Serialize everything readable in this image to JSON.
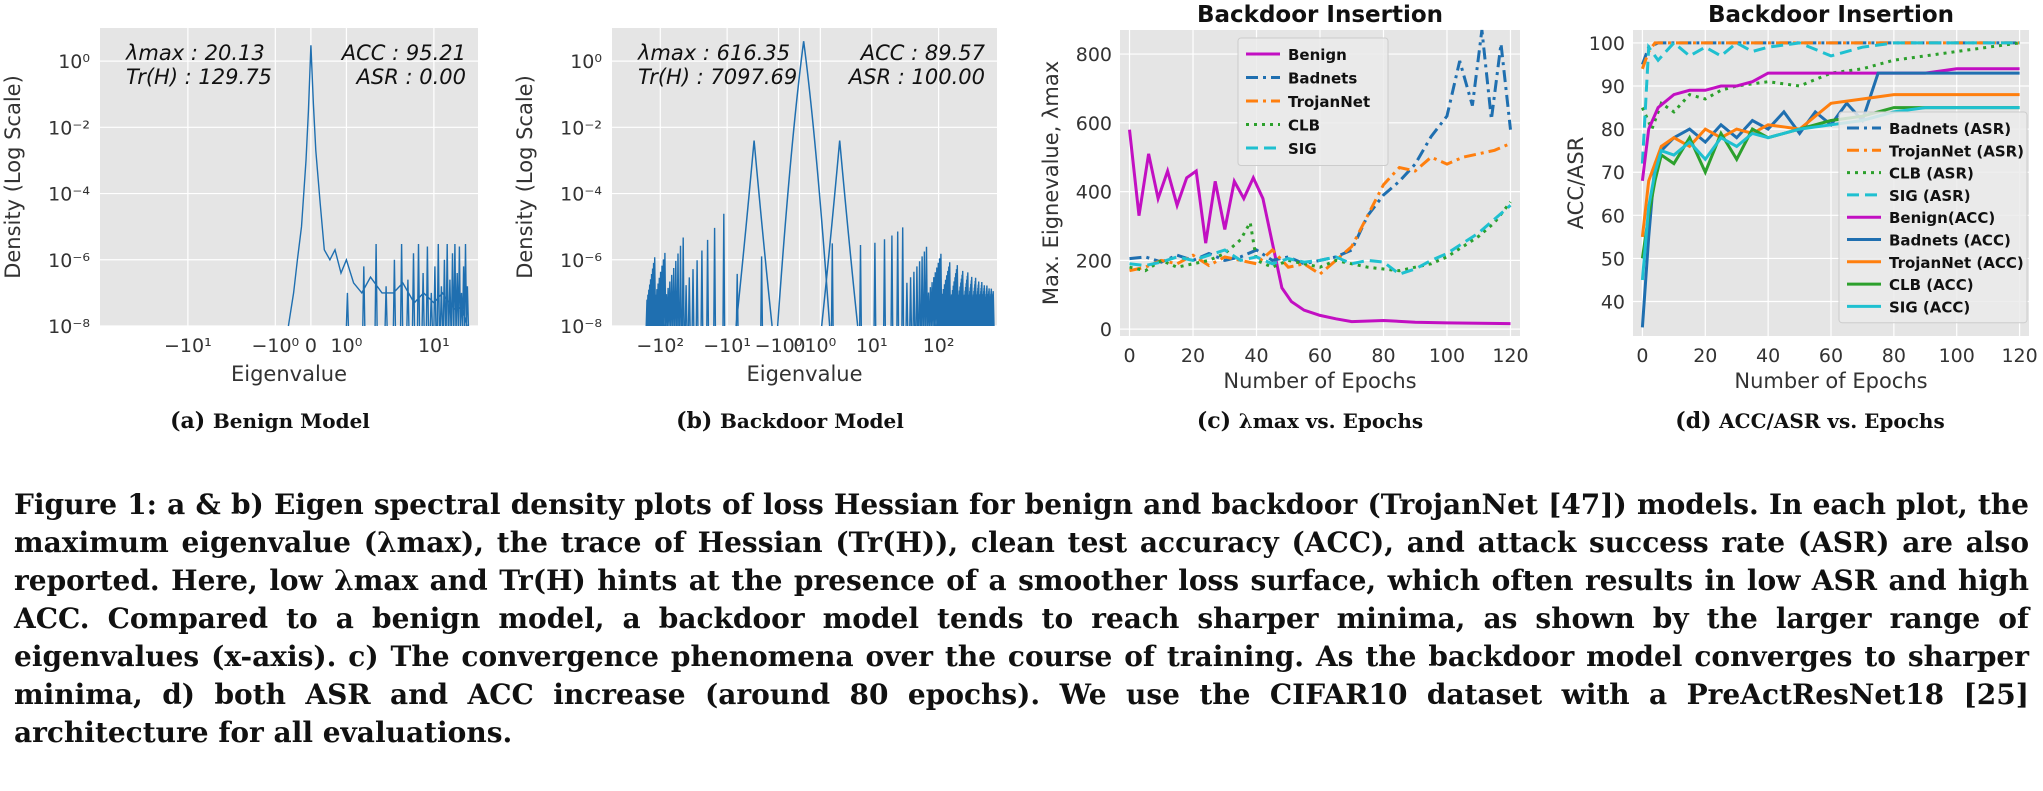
{
  "subcaptions": [
    {
      "label": "(a)",
      "text": "Benign Model"
    },
    {
      "label": "(b)",
      "text": "Backdoor Model"
    },
    {
      "label": "(c)",
      "text": "λmax vs. Epochs"
    },
    {
      "label": "(d)",
      "text": "ACC/ASR vs. Epochs"
    }
  ],
  "caption": "Figure 1: a & b) Eigen spectral density plots of loss Hessian for benign and backdoor (TrojanNet [47]) models. In each plot, the maximum eigenvalue (λmax), the trace of Hessian (Tr(H)), clean test accuracy (ACC), and attack success rate (ASR) are also reported. Here, low λmax and Tr(H) hints at the presence of a smoother loss surface, which often results in low ASR and high ACC. Compared to a benign model, a backdoor model tends to reach sharper minima, as shown by the larger range of eigenvalues (x-axis). c) The convergence phenomena over the course of training. As the backdoor model converges to sharper minima, d) both ASR and ACC increase (around 80 epochs). We use the CIFAR10 dataset with a PreActResNet18 [25] architecture for all evaluations.",
  "colors": {
    "benign": "#c20fc2",
    "badnets": "#1f6fb0",
    "trojannet": "#ff7f0e",
    "clb": "#2ca02c",
    "sig": "#1fc0d0",
    "esd": "#1f6fb0",
    "panel_bg": "#e5e5e5"
  },
  "chart_data": [
    {
      "type": "line",
      "xlabel": "Eigenvalue",
      "ylabel": "Density (Log Scale)",
      "xscale": "symlog",
      "yscale": "log",
      "xticks": [
        "−10¹",
        "−10⁰",
        "0",
        "10⁰",
        "10¹"
      ],
      "yticks": [
        "10⁰",
        "10⁻²",
        "10⁻⁴",
        "10⁻⁶",
        "10⁻⁸"
      ],
      "ylim": [
        1e-08,
        10
      ],
      "annotations": [
        {
          "name": "λmax",
          "value": "20.13"
        },
        {
          "name": "Tr(H)",
          "value": "129.75"
        },
        {
          "name": "ACC",
          "value": "95.21"
        },
        {
          "name": "ASR",
          "value": "0.00"
        }
      ],
      "x": [
        -0.55,
        -0.4,
        -0.3,
        -0.2,
        -0.1,
        -0.05,
        0,
        0.05,
        0.1,
        0.2,
        0.3,
        0.45,
        0.6,
        0.8,
        1.0,
        1.3,
        1.7,
        2.2,
        3,
        4,
        5,
        6.5,
        8,
        10,
        12,
        14,
        16,
        18,
        20
      ],
      "y": [
        1e-08,
        1e-07,
        1e-06,
        1e-05,
        0.001,
        0.03,
        3,
        0.05,
        0.002,
        5e-05,
        2e-06,
        1e-06,
        2e-06,
        4e-07,
        1e-06,
        2e-07,
        1e-07,
        3e-07,
        1e-07,
        1e-07,
        2e-07,
        5e-08,
        1e-07,
        5e-08,
        1e-07,
        5e-08,
        3e-08,
        4e-08,
        1e-08
      ]
    },
    {
      "type": "line",
      "xlabel": "Eigenvalue",
      "ylabel": "Density (Log Scale)",
      "xscale": "symlog",
      "yscale": "log",
      "xticks": [
        "−10²",
        "−10¹",
        "−10⁰",
        "0",
        "10⁰",
        "10¹",
        "10²"
      ],
      "yticks": [
        "10⁰",
        "10⁻²",
        "10⁻⁴",
        "10⁻⁶",
        "10⁻⁸"
      ],
      "ylim": [
        1e-08,
        10
      ],
      "annotations": [
        {
          "name": "λmax",
          "value": "616.35"
        },
        {
          "name": "Tr(H)",
          "value": "7097.69"
        },
        {
          "name": "ACC",
          "value": "89.57"
        },
        {
          "name": "ASR",
          "value": "100.00"
        }
      ],
      "peaks": [
        {
          "x": -3.5,
          "y": 0.004
        },
        {
          "x": 0.15,
          "y": 4
        },
        {
          "x": 2.8,
          "y": 0.004
        }
      ],
      "spikes_range": [
        -160,
        600
      ]
    },
    {
      "type": "line",
      "title": "Backdoor Insertion",
      "xlabel": "Number of Epochs",
      "ylabel": "Max. Eignevalue, λmax",
      "xlim": [
        -3,
        123
      ],
      "ylim": [
        -20,
        870
      ],
      "xticks": [
        0,
        20,
        40,
        60,
        80,
        100,
        120
      ],
      "yticks": [
        0,
        200,
        400,
        600,
        800
      ],
      "legend": "top-center",
      "series": [
        {
          "name": "Benign",
          "color": "#c20fc2",
          "dash": "solid",
          "x": [
            0,
            3,
            6,
            9,
            12,
            15,
            18,
            21,
            24,
            27,
            30,
            33,
            36,
            39,
            42,
            45,
            48,
            51,
            55,
            60,
            65,
            70,
            80,
            90,
            100,
            110,
            120
          ],
          "y": [
            580,
            330,
            510,
            380,
            460,
            360,
            440,
            460,
            250,
            430,
            290,
            430,
            380,
            440,
            380,
            250,
            120,
            80,
            55,
            40,
            30,
            22,
            25,
            20,
            18,
            17,
            16
          ]
        },
        {
          "name": "Badnets",
          "color": "#1f6fb0",
          "dash": "dashdot",
          "x": [
            0,
            5,
            10,
            15,
            20,
            25,
            30,
            35,
            40,
            45,
            50,
            55,
            60,
            65,
            70,
            75,
            80,
            85,
            90,
            95,
            100,
            104,
            108,
            111,
            114,
            117,
            120
          ],
          "y": [
            205,
            210,
            195,
            215,
            200,
            220,
            200,
            210,
            230,
            200,
            210,
            190,
            200,
            210,
            230,
            330,
            390,
            430,
            480,
            560,
            620,
            780,
            650,
            870,
            610,
            830,
            580
          ]
        },
        {
          "name": "TrojanNet",
          "color": "#ff7f0e",
          "dash": "dashdot",
          "x": [
            0,
            5,
            10,
            15,
            20,
            25,
            30,
            35,
            40,
            45,
            50,
            55,
            60,
            65,
            70,
            75,
            80,
            85,
            90,
            95,
            100,
            105,
            110,
            115,
            120
          ],
          "y": [
            170,
            180,
            200,
            190,
            215,
            185,
            210,
            200,
            190,
            230,
            180,
            190,
            160,
            200,
            240,
            330,
            420,
            470,
            460,
            500,
            480,
            500,
            510,
            520,
            540
          ]
        },
        {
          "name": "CLB",
          "color": "#2ca02c",
          "dash": "dotted",
          "x": [
            0,
            5,
            10,
            15,
            20,
            25,
            30,
            35,
            38,
            40,
            45,
            50,
            55,
            60,
            65,
            70,
            75,
            80,
            85,
            90,
            95,
            100,
            105,
            110,
            115,
            120
          ],
          "y": [
            180,
            170,
            200,
            180,
            190,
            200,
            220,
            260,
            310,
            200,
            180,
            200,
            190,
            180,
            200,
            190,
            180,
            175,
            170,
            180,
            190,
            210,
            240,
            270,
            310,
            370
          ]
        },
        {
          "name": "SIG",
          "color": "#1fc0d0",
          "dash": "dashed",
          "x": [
            0,
            5,
            10,
            15,
            20,
            25,
            30,
            35,
            40,
            45,
            50,
            55,
            60,
            65,
            70,
            75,
            80,
            85,
            90,
            95,
            100,
            105,
            110,
            115,
            120
          ],
          "y": [
            190,
            185,
            195,
            210,
            200,
            215,
            230,
            200,
            210,
            190,
            205,
            195,
            200,
            210,
            190,
            200,
            195,
            160,
            175,
            200,
            220,
            250,
            280,
            320,
            360
          ]
        }
      ]
    },
    {
      "type": "line",
      "title": "Backdoor Insertion",
      "xlabel": "Number of Epochs",
      "ylabel": "ACC/ASR",
      "xlim": [
        -3,
        123
      ],
      "ylim": [
        32,
        103
      ],
      "xticks": [
        0,
        20,
        40,
        60,
        80,
        100,
        120
      ],
      "yticks": [
        40,
        50,
        60,
        70,
        80,
        90,
        100
      ],
      "legend": "right",
      "series": [
        {
          "name": "Badnets (ASR)",
          "color": "#1f6fb0",
          "dash": "dashdot",
          "x": [
            0,
            2,
            5,
            10,
            20,
            40,
            60,
            80,
            100,
            120
          ],
          "y": [
            95,
            99,
            100,
            100,
            100,
            100,
            100,
            100,
            100,
            100
          ]
        },
        {
          "name": "TrojanNet (ASR)",
          "color": "#ff7f0e",
          "dash": "dashdot",
          "x": [
            0,
            2,
            4,
            10,
            20,
            40,
            60,
            80,
            100,
            120
          ],
          "y": [
            94,
            98,
            100,
            100,
            100,
            100,
            100,
            100,
            100,
            100
          ]
        },
        {
          "name": "CLB (ASR)",
          "color": "#2ca02c",
          "dash": "dotted",
          "x": [
            0,
            3,
            6,
            10,
            15,
            20,
            25,
            30,
            40,
            50,
            60,
            70,
            80,
            90,
            100,
            110,
            120
          ],
          "y": [
            85,
            80,
            86,
            84,
            88,
            87,
            89,
            90,
            91,
            90,
            93,
            94,
            96,
            97,
            98,
            99,
            100
          ]
        },
        {
          "name": "SIG (ASR)",
          "color": "#1fc0d0",
          "dash": "dashed",
          "x": [
            0,
            2,
            5,
            10,
            15,
            20,
            25,
            30,
            35,
            40,
            50,
            60,
            70,
            80,
            90,
            100,
            110,
            120
          ],
          "y": [
            72,
            99,
            96,
            100,
            97,
            99,
            97,
            100,
            98,
            99,
            100,
            97,
            99,
            100,
            100,
            100,
            100,
            100
          ]
        },
        {
          "name": "Benign(ACC)",
          "color": "#c20fc2",
          "dash": "solid",
          "x": [
            0,
            2,
            5,
            10,
            15,
            20,
            25,
            30,
            35,
            40,
            50,
            60,
            70,
            80,
            90,
            100,
            110,
            120
          ],
          "y": [
            68,
            80,
            85,
            88,
            89,
            89,
            90,
            90,
            91,
            93,
            93,
            93,
            93,
            93,
            93,
            94,
            94,
            94
          ]
        },
        {
          "name": "Badnets (ACC)",
          "color": "#1f6fb0",
          "dash": "solid",
          "x": [
            0,
            2,
            4,
            6,
            10,
            15,
            20,
            25,
            30,
            35,
            40,
            45,
            50,
            55,
            60,
            65,
            70,
            75,
            80,
            90,
            100,
            110,
            120
          ],
          "y": [
            34,
            55,
            72,
            75,
            78,
            80,
            77,
            81,
            78,
            82,
            80,
            84,
            79,
            84,
            81,
            86,
            82,
            93,
            93,
            93,
            93,
            93,
            93
          ]
        },
        {
          "name": "TrojanNet (ACC)",
          "color": "#ff7f0e",
          "dash": "solid",
          "x": [
            0,
            2,
            4,
            6,
            10,
            15,
            20,
            25,
            30,
            35,
            40,
            50,
            60,
            70,
            80,
            90,
            100,
            110,
            120
          ],
          "y": [
            55,
            68,
            72,
            76,
            78,
            76,
            80,
            78,
            80,
            79,
            81,
            80,
            86,
            87,
            88,
            88,
            88,
            88,
            88
          ]
        },
        {
          "name": "CLB (ACC)",
          "color": "#2ca02c",
          "dash": "solid",
          "x": [
            0,
            2,
            4,
            6,
            10,
            15,
            20,
            25,
            30,
            35,
            40,
            50,
            60,
            70,
            80,
            90,
            100,
            110,
            120
          ],
          "y": [
            50,
            60,
            68,
            74,
            72,
            78,
            70,
            79,
            73,
            80,
            78,
            80,
            82,
            83,
            85,
            85,
            85,
            85,
            85
          ]
        },
        {
          "name": "SIG (ACC)",
          "color": "#1fc0d0",
          "dash": "solid",
          "x": [
            0,
            2,
            4,
            6,
            10,
            15,
            20,
            25,
            30,
            35,
            40,
            50,
            60,
            70,
            80,
            90,
            100,
            110,
            120
          ],
          "y": [
            45,
            62,
            70,
            75,
            74,
            77,
            73,
            78,
            76,
            79,
            78,
            80,
            81,
            82,
            84,
            85,
            85,
            85,
            85
          ]
        }
      ]
    }
  ]
}
